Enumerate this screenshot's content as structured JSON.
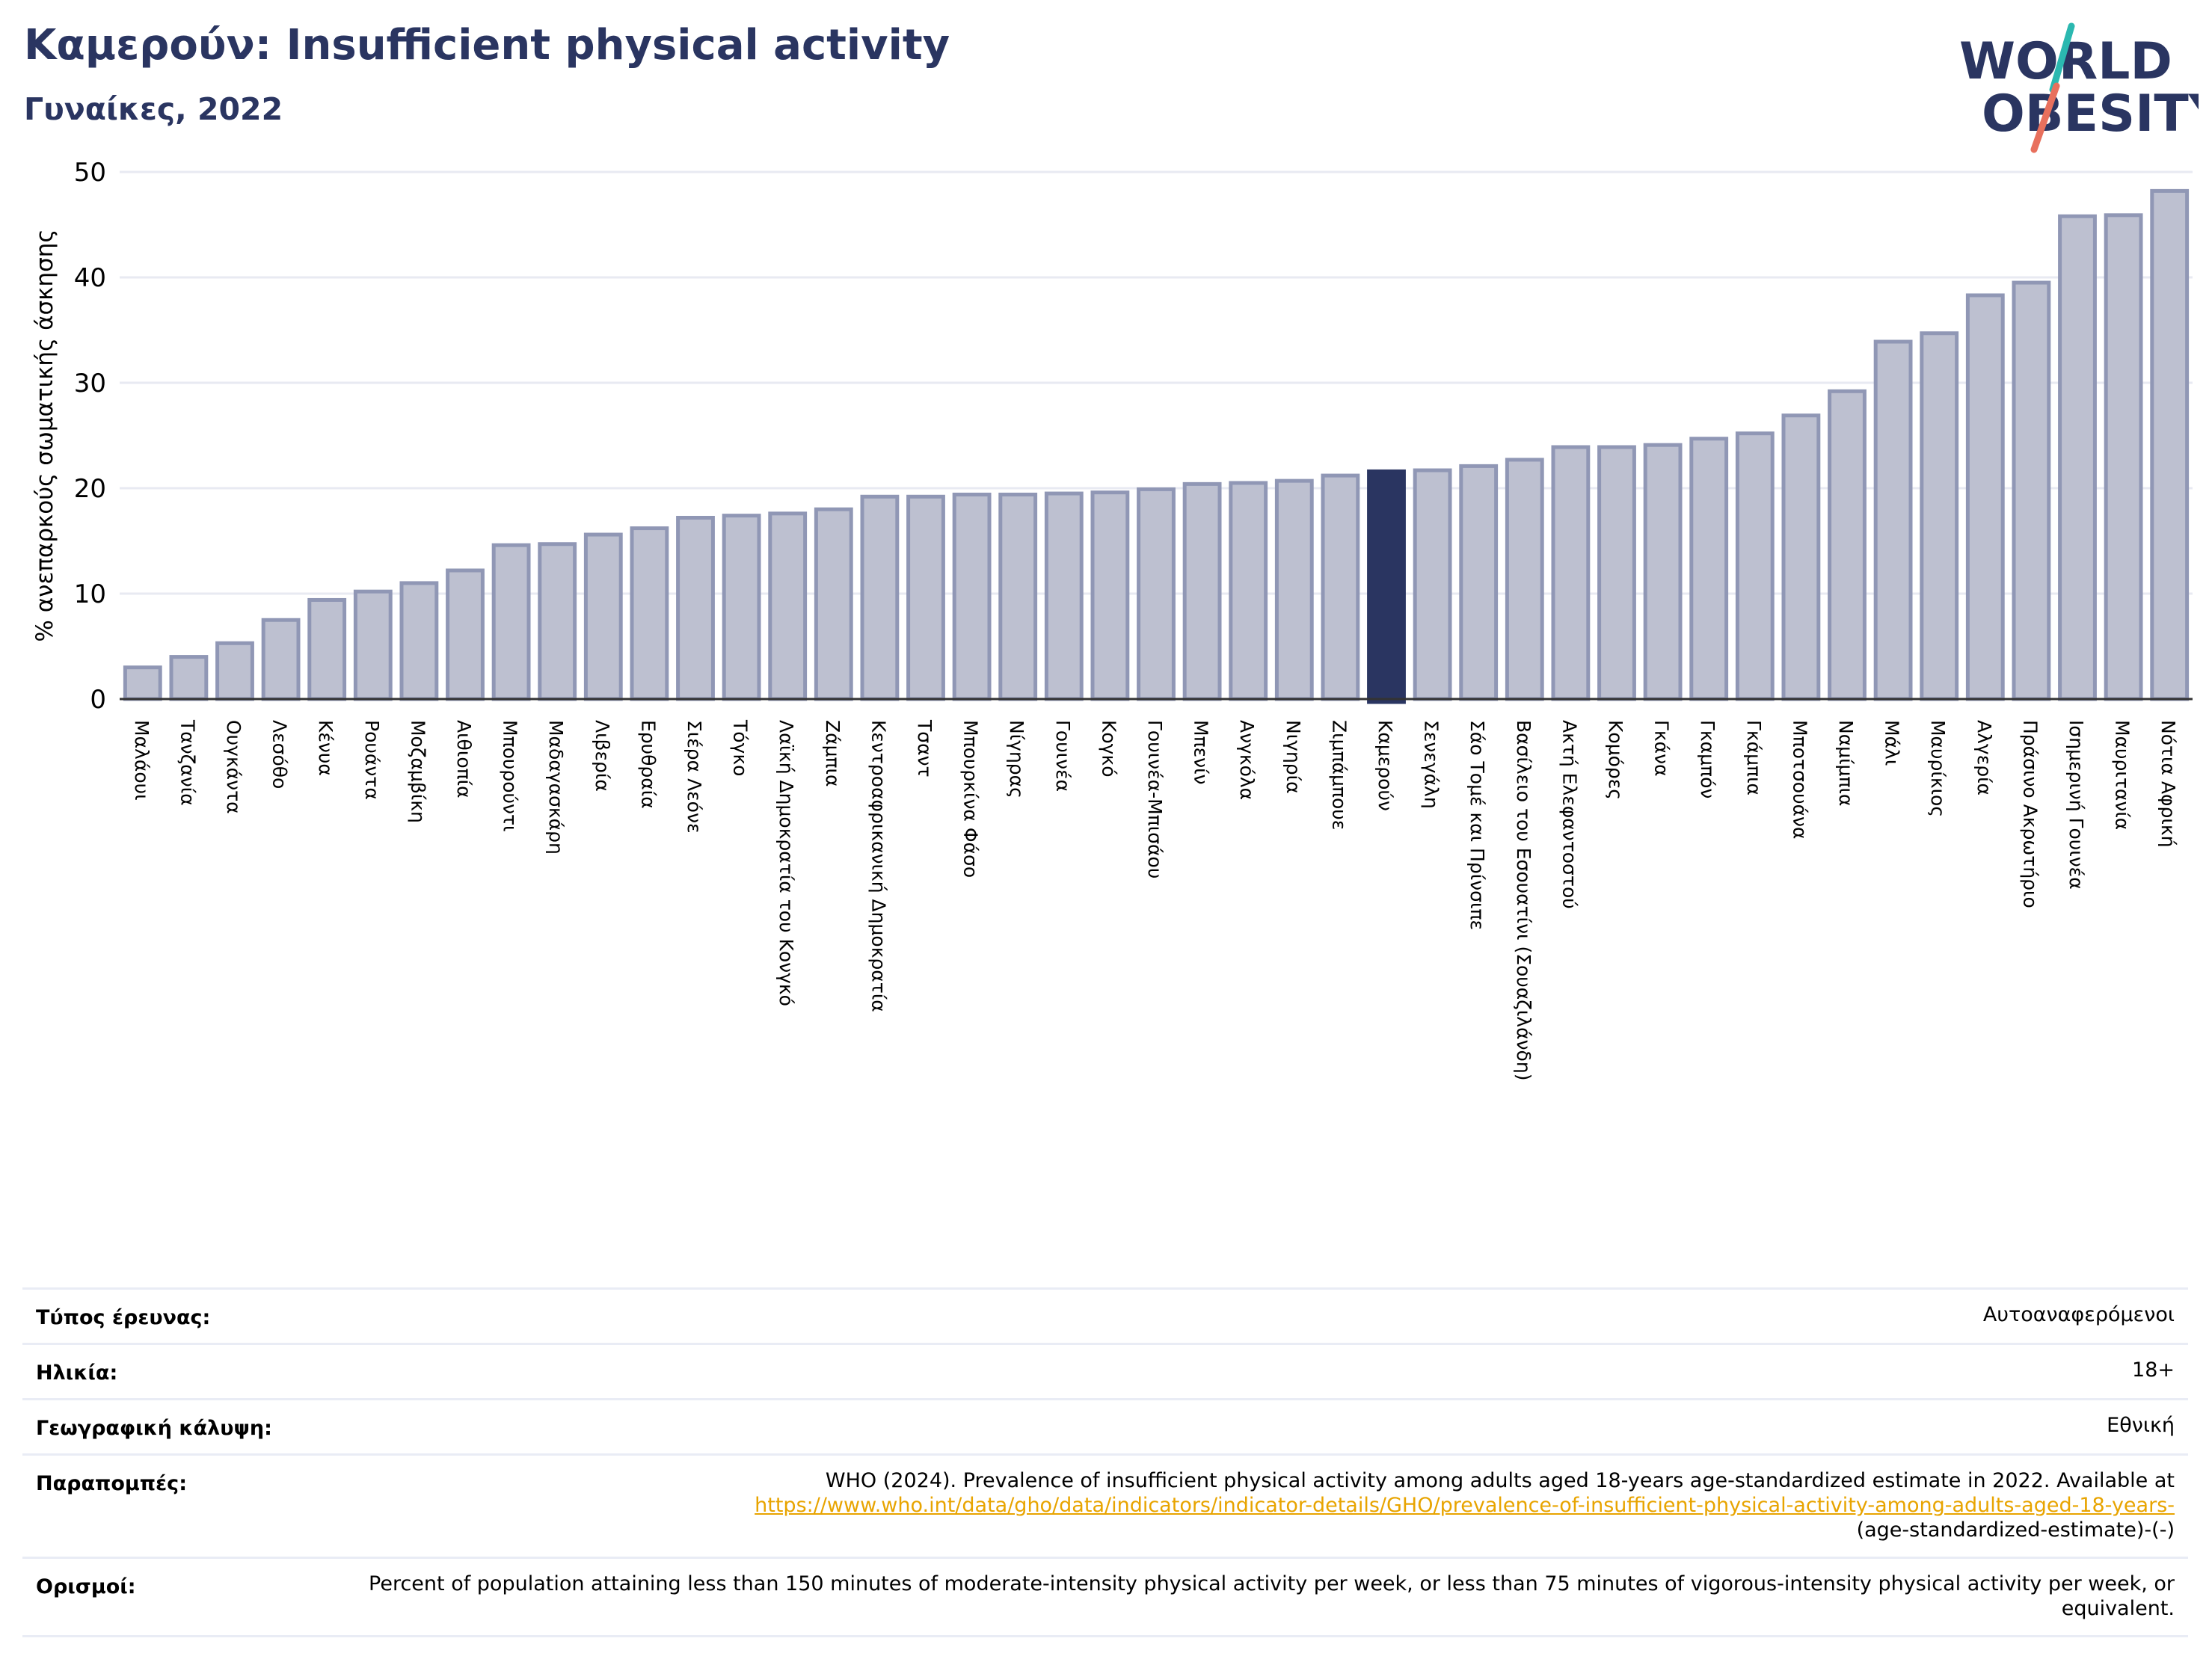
{
  "header": {
    "title": "Καμερούν: Insufficient physical activity",
    "subtitle": "Γυναίκες, 2022",
    "logo_line1": "WORLD",
    "logo_line2": "OBESITY"
  },
  "colors": {
    "title": "#2a3561",
    "bar_fill": "#bdc0d0",
    "bar_stroke": "#9097b5",
    "highlight": "#2a3561",
    "grid": "#e8eaf2",
    "logo_teal": "#2bb8b0",
    "logo_red": "#e8705d",
    "link": "#e8a400"
  },
  "chart_data": {
    "type": "bar",
    "ylabel": "% ανεπαρκούς σωματικής άσκησης",
    "ylim": [
      0,
      50
    ],
    "yticks": [
      0,
      10,
      20,
      30,
      40,
      50
    ],
    "grid": true,
    "highlight_category": "Καμερούν",
    "categories": [
      "Μαλάουι",
      "Τανζανία",
      "Ουγκάντα",
      "Λεσόθο",
      "Κένυα",
      "Ρουάντα",
      "Μοζαμβίκη",
      "Αιθιοπία",
      "Μπουρούντι",
      "Μαδαγασκάρη",
      "Λιβερία",
      "Ερυθραία",
      "Σιέρα Λεόνε",
      "Τόγκο",
      "Λαϊκή Δημοκρατία του Κονγκό",
      "Ζάμπια",
      "Κεντροαφρικανική Δημοκρατία",
      "Τσαντ",
      "Μπουρκίνα Φάσο",
      "Νίγηρας",
      "Γουινέα",
      "Κογκό",
      "Γουινέα-Μπισάου",
      "Μπενίν",
      "Ανγκόλα",
      "Νιγηρία",
      "Ζιμπάμπουε",
      "Καμερούν",
      "Σενεγάλη",
      "Σάο Τομέ και Πρίνσιπε",
      "Βασίλειο του Εσουατίνι (Σουαζιλάνδη)",
      "Ακτή Ελεφαντοστού",
      "Κομόρες",
      "Γκάνα",
      "Γκαμπόν",
      "Γκάμπια",
      "Μποτσουάνα",
      "Ναμίμπια",
      "Μάλι",
      "Μαυρίκιος",
      "Αλγερία",
      "Πράσινο Ακρωτήριο",
      "Ισημερινή Γουινέα",
      "Μαυριτανία",
      "Νότια Αφρική"
    ],
    "values": [
      3.0,
      4.0,
      5.3,
      7.5,
      9.4,
      10.2,
      11.0,
      12.2,
      14.6,
      14.7,
      15.6,
      16.2,
      17.2,
      17.4,
      17.6,
      18.0,
      19.2,
      19.2,
      19.4,
      19.4,
      19.5,
      19.6,
      19.9,
      20.4,
      20.5,
      20.7,
      21.2,
      21.6,
      21.7,
      22.1,
      22.7,
      23.9,
      23.9,
      24.1,
      24.7,
      25.2,
      26.9,
      29.2,
      33.9,
      34.7,
      38.3,
      39.5,
      45.8,
      45.9,
      48.2
    ]
  },
  "meta": {
    "survey_type_label": "Τύπος έρευνας:",
    "survey_type_value": "Αυτοαναφερόμενοι",
    "age_label": "Ηλικία:",
    "age_value": "18+",
    "coverage_label": "Γεωγραφική κάλυψη:",
    "coverage_value": "Εθνική",
    "references_label": "Παραπομπές:",
    "references_text": "WHO (2024). Prevalence of insufficient physical activity among adults aged 18-years age-standardized estimate in 2022. Available at",
    "references_link": "https://www.who.int/data/gho/data/indicators/indicator-details/GHO/prevalence-of-insufficient-physical-activity-among-adults-aged-18-years-",
    "references_tail": "(age-standardized-estimate)-(-)",
    "definitions_label": "Ορισμοί:",
    "definitions_text": "Percent of population attaining less than 150 minutes of moderate-intensity physical activity per week, or less than 75 minutes of vigorous-intensity physical activity per week, or equivalent."
  }
}
